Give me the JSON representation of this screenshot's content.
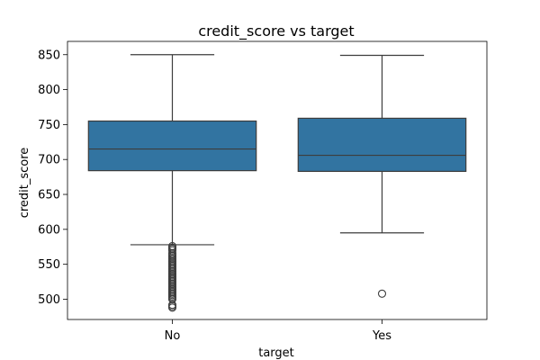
{
  "chart_data": {
    "type": "box",
    "title": "credit_score vs target",
    "xlabel": "target",
    "ylabel": "credit_score",
    "categories": [
      "No",
      "Yes"
    ],
    "ylim": [
      471,
      869
    ],
    "yticks": [
      500,
      550,
      600,
      650,
      700,
      750,
      800,
      850
    ],
    "grid": false,
    "box_color": "#3274a1",
    "line_color": "#3d3d3d",
    "boxes": [
      {
        "category": "No",
        "whisker_low": 578,
        "q1": 684,
        "median": 715,
        "q3": 755,
        "whisker_high": 850,
        "outliers": [
          576,
          574,
          572,
          570,
          566,
          564,
          562,
          560,
          558,
          556,
          554,
          552,
          550,
          548,
          546,
          544,
          542,
          540,
          538,
          536,
          534,
          532,
          530,
          528,
          526,
          524,
          522,
          520,
          518,
          516,
          514,
          512,
          510,
          508,
          506,
          504,
          502,
          500,
          492,
          490,
          488
        ]
      },
      {
        "category": "Yes",
        "whisker_low": 595,
        "q1": 683,
        "median": 706,
        "q3": 759,
        "whisker_high": 849,
        "outliers": [
          508
        ]
      }
    ]
  }
}
